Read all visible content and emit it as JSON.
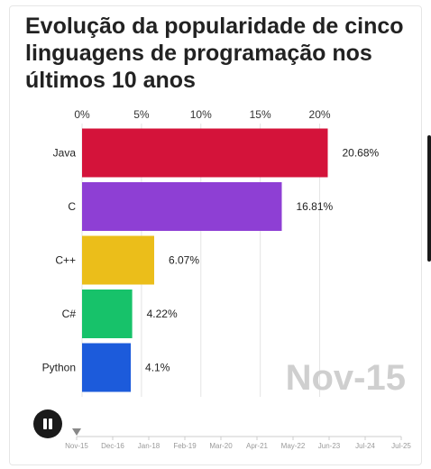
{
  "title": "Evolução da popularidade de cinco linguagens de programação nos últimos 10 anos",
  "current_date": "Nov-15",
  "pause_icon": "pause-icon",
  "timeline": {
    "labels": [
      "Nov-15",
      "Dec-16",
      "Jan-18",
      "Feb-19",
      "Mar-20",
      "Apr-21",
      "May-22",
      "Jun-23",
      "Jul-24",
      "Jul-25"
    ],
    "position_fraction": 0
  },
  "chart_data": {
    "type": "bar",
    "orientation": "horizontal",
    "title": "Evolução da popularidade de cinco linguagens de programação nos últimos 10 anos",
    "categories": [
      "Java",
      "C",
      "C++",
      "C#",
      "Python"
    ],
    "values": [
      20.68,
      16.81,
      6.07,
      4.22,
      4.1
    ],
    "value_labels": [
      "20.68%",
      "16.81%",
      "6.07%",
      "4.22%",
      "4.1%"
    ],
    "colors": [
      "#d4133a",
      "#8e3fd4",
      "#ebbe1a",
      "#17c26a",
      "#1c5bdb"
    ],
    "xlim": [
      0,
      21
    ],
    "x_ticks": [
      0,
      5,
      10,
      15,
      20
    ],
    "x_tick_labels": [
      "0%",
      "5%",
      "10%",
      "15%",
      "20%"
    ],
    "axis_position": "top",
    "grid": true,
    "legend": "none"
  }
}
